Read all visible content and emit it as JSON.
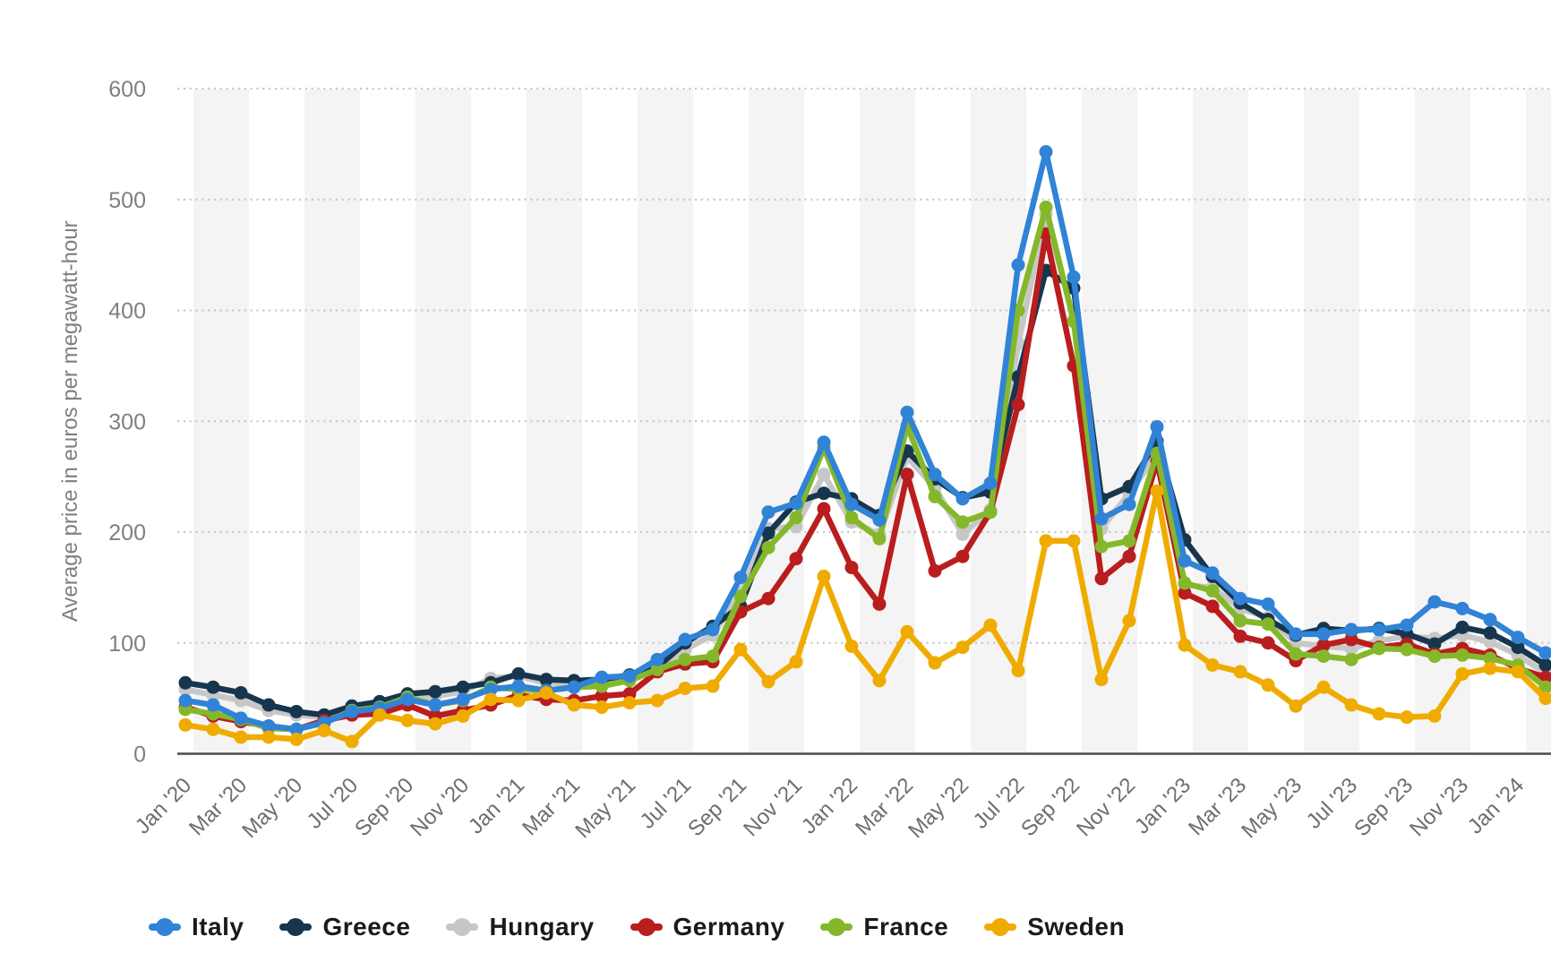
{
  "chart_data": {
    "type": "line",
    "title": "",
    "ylabel": "Average price in euros per megawatt-hour",
    "xlabel": "",
    "ylim": [
      0,
      600
    ],
    "yticks": [
      0,
      100,
      200,
      300,
      400,
      500,
      600
    ],
    "grid": "horizontal-dotted",
    "legend_position": "bottom",
    "x_label_every": 2,
    "x": [
      "Jan '20",
      "Feb '20",
      "Mar '20",
      "Apr '20",
      "May '20",
      "Jun '20",
      "Jul '20",
      "Aug '20",
      "Sep '20",
      "Oct '20",
      "Nov '20",
      "Dec '20",
      "Jan '21",
      "Feb '21",
      "Mar '21",
      "Apr '21",
      "May '21",
      "Jun '21",
      "Jul '21",
      "Aug '21",
      "Sep '21",
      "Oct '21",
      "Nov '21",
      "Dec '21",
      "Jan '22",
      "Feb '22",
      "Mar '22",
      "Apr '22",
      "May '22",
      "Jun '22",
      "Jul '22",
      "Aug '22",
      "Sep '22",
      "Oct '22",
      "Nov '22",
      "Dec '22",
      "Jan '23",
      "Feb '23",
      "Mar '23",
      "Apr '23",
      "May '23",
      "Jun '23",
      "Jul '23",
      "Aug '23",
      "Sep '23",
      "Oct '23",
      "Nov '23",
      "Dec '23",
      "Jan '24",
      "Feb '24"
    ],
    "series": [
      {
        "name": "Italy",
        "color": "#3083d6",
        "values": [
          48,
          44,
          32,
          25,
          22,
          28,
          38,
          41,
          49,
          44,
          49,
          58,
          61,
          57,
          60,
          69,
          70,
          85,
          103,
          112,
          159,
          218,
          226,
          281,
          225,
          211,
          308,
          252,
          230,
          244,
          441,
          543,
          430,
          212,
          225,
          295,
          174,
          163,
          140,
          135,
          108,
          108,
          112,
          112,
          116,
          137,
          131,
          121,
          105,
          91
        ]
      },
      {
        "name": "Greece",
        "color": "#17364e",
        "values": [
          64,
          60,
          55,
          44,
          38,
          35,
          43,
          47,
          54,
          56,
          60,
          64,
          72,
          67,
          66,
          67,
          71,
          78,
          100,
          115,
          133,
          199,
          227,
          235,
          230,
          215,
          273,
          248,
          231,
          236,
          340,
          436,
          420,
          230,
          241,
          282,
          193,
          160,
          136,
          121,
          107,
          113,
          111,
          113,
          108,
          99,
          114,
          109,
          96,
          80
        ]
      },
      {
        "name": "Hungary",
        "color": "#c7c7c7",
        "values": [
          58,
          53,
          48,
          39,
          35,
          33,
          38,
          42,
          50,
          52,
          56,
          68,
          70,
          64,
          63,
          64,
          68,
          76,
          94,
          107,
          145,
          203,
          205,
          252,
          209,
          198,
          268,
          240,
          198,
          220,
          370,
          487,
          392,
          203,
          235,
          270,
          152,
          150,
          131,
          123,
          100,
          97,
          95,
          102,
          106,
          104,
          107,
          101,
          89,
          73
        ]
      },
      {
        "name": "Germany",
        "color": "#b91d1d",
        "values": [
          42,
          34,
          29,
          25,
          22,
          30,
          35,
          36,
          44,
          34,
          39,
          44,
          53,
          49,
          48,
          52,
          54,
          74,
          81,
          83,
          128,
          140,
          176,
          221,
          168,
          135,
          252,
          165,
          178,
          218,
          315,
          469,
          350,
          158,
          178,
          264,
          145,
          133,
          106,
          100,
          84,
          98,
          103,
          96,
          99,
          90,
          95,
          89,
          77,
          69
        ]
      },
      {
        "name": "France",
        "color": "#84b82a",
        "values": [
          40,
          36,
          31,
          23,
          22,
          28,
          39,
          42,
          51,
          44,
          48,
          60,
          58,
          57,
          60,
          61,
          66,
          76,
          85,
          88,
          142,
          186,
          213,
          276,
          213,
          194,
          296,
          232,
          209,
          218,
          400,
          493,
          390,
          187,
          192,
          271,
          154,
          147,
          120,
          117,
          90,
          88,
          85,
          95,
          94,
          88,
          89,
          86,
          80,
          60
        ]
      },
      {
        "name": "Sweden",
        "color": "#f0ab00",
        "values": [
          26,
          22,
          15,
          15,
          13,
          21,
          11,
          35,
          30,
          27,
          34,
          49,
          48,
          55,
          44,
          42,
          46,
          48,
          59,
          61,
          94,
          65,
          83,
          160,
          97,
          66,
          110,
          82,
          96,
          116,
          75,
          192,
          192,
          67,
          120,
          237,
          98,
          80,
          74,
          62,
          43,
          60,
          44,
          36,
          33,
          34,
          72,
          77,
          74,
          50
        ]
      }
    ],
    "z_order": [
      "Hungary",
      "Greece",
      "Germany",
      "France",
      "Italy",
      "Sweden"
    ],
    "styles": {
      "background": "#ffffff",
      "band_color": "#f4f4f4",
      "grid_color": "#c9c9c9",
      "axis_color": "#4a4a4a",
      "ytick_label_color": "#808080",
      "xtick_label_color": "#6e6e6e",
      "ylabel_color": "#7f7f7f",
      "legend_text_color": "#1a1a1a"
    }
  }
}
